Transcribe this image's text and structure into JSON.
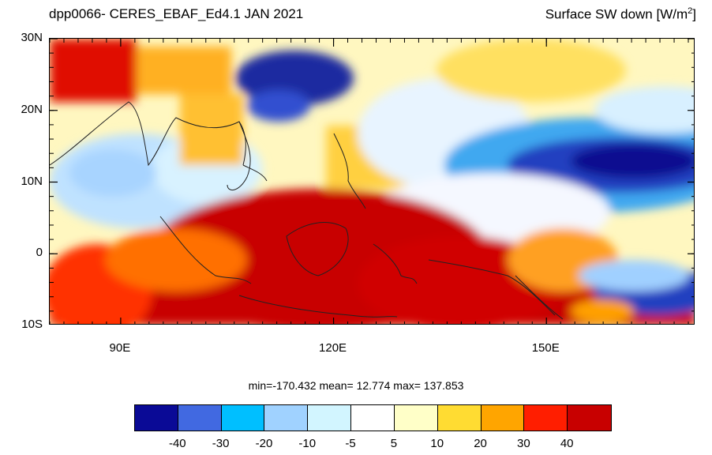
{
  "header": {
    "title_left": "dpp0066- CERES_EBAF_Ed4.1  JAN 2021",
    "title_right_main": "Surface SW down [W/m",
    "title_right_sup": "2",
    "title_right_end": "]"
  },
  "map": {
    "lon_range": [
      80,
      171
    ],
    "lat_range": [
      -10,
      30
    ],
    "lat_ticks": [
      {
        "value": 30,
        "label": "30N"
      },
      {
        "value": 20,
        "label": "20N"
      },
      {
        "value": 10,
        "label": "10N"
      },
      {
        "value": 0,
        "label": "0"
      },
      {
        "value": -10,
        "label": "10S"
      }
    ],
    "lon_ticks": [
      {
        "value": 90,
        "label": "90E"
      },
      {
        "value": 120,
        "label": "120E"
      },
      {
        "value": 150,
        "label": "150E"
      }
    ],
    "field": "Surface SW down anomaly",
    "colors": {
      "frame": "#000000",
      "coast": "#222222"
    }
  },
  "stats": {
    "text": "min=-170.432  mean=  12.774  max= 137.853"
  },
  "colorbar": {
    "colors": [
      "#0a0a96",
      "#4169e1",
      "#00bfff",
      "#a0d2ff",
      "#d2f5ff",
      "#ffffff",
      "#ffffc8",
      "#ffdc32",
      "#ffa500",
      "#ff1e00",
      "#c80000"
    ],
    "labels": [
      "-40",
      "-30",
      "-20",
      "-10",
      "-5",
      "5",
      "10",
      "20",
      "30",
      "40"
    ]
  }
}
